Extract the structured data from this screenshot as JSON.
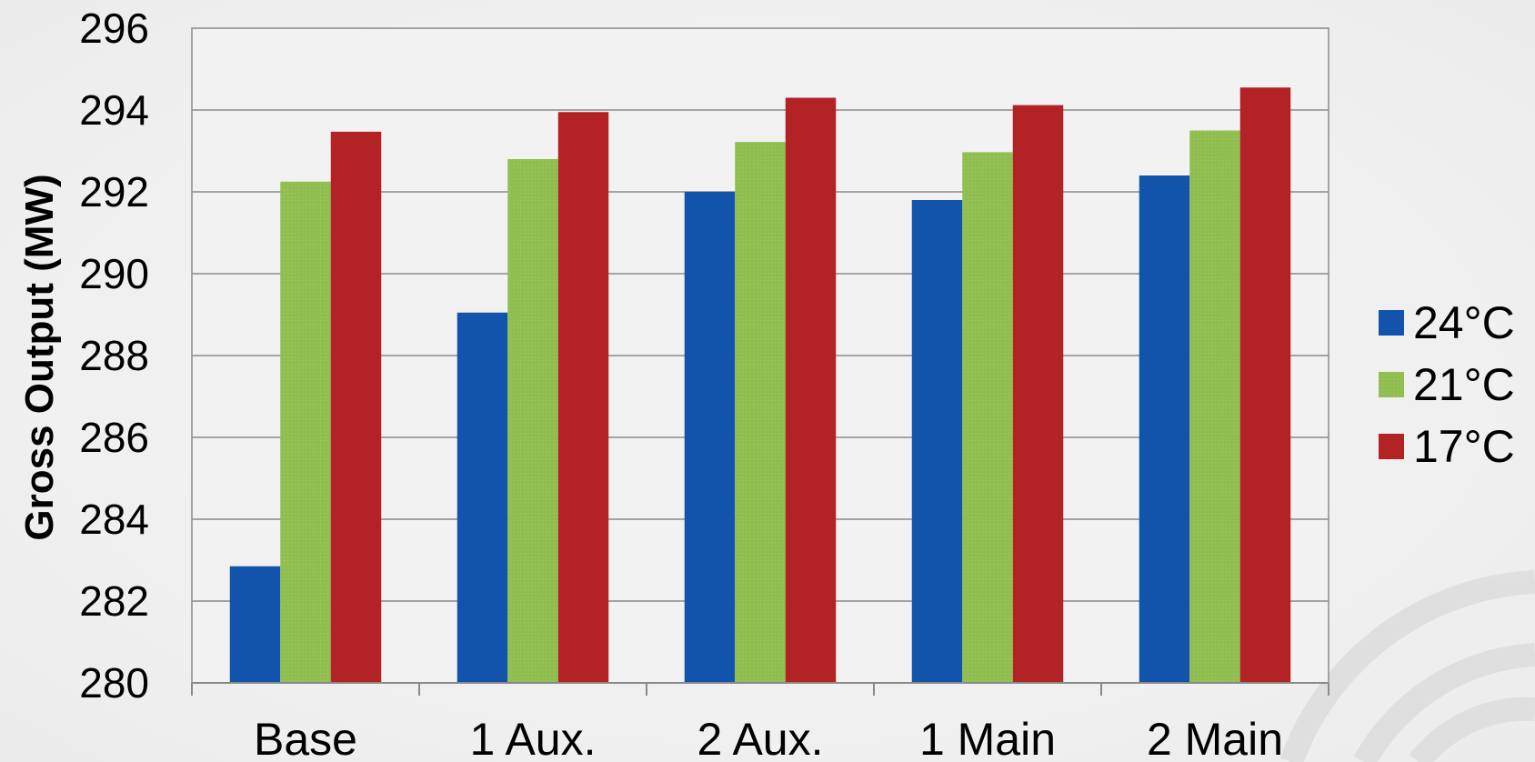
{
  "chart_data": {
    "type": "bar",
    "title": "",
    "xlabel": "",
    "ylabel": "Gross Output (MW)",
    "ylim": [
      280,
      296
    ],
    "yticks": [
      280,
      282,
      284,
      286,
      288,
      290,
      292,
      294,
      296
    ],
    "grid": true,
    "legend_position": "right",
    "categories": [
      "Base",
      "1 Aux.",
      "2 Aux.",
      "1 Main",
      "2 Main"
    ],
    "series": [
      {
        "name": "24°C",
        "color": "#1254ac",
        "values": [
          282.85,
          289.05,
          292.0,
          291.8,
          292.4
        ]
      },
      {
        "name": "21°C",
        "color": "#8fbd4f",
        "values": [
          292.25,
          292.8,
          293.22,
          292.97,
          293.5
        ]
      },
      {
        "name": "17°C",
        "color": "#b32225",
        "values": [
          293.47,
          293.95,
          294.3,
          294.12,
          294.55
        ]
      }
    ]
  }
}
